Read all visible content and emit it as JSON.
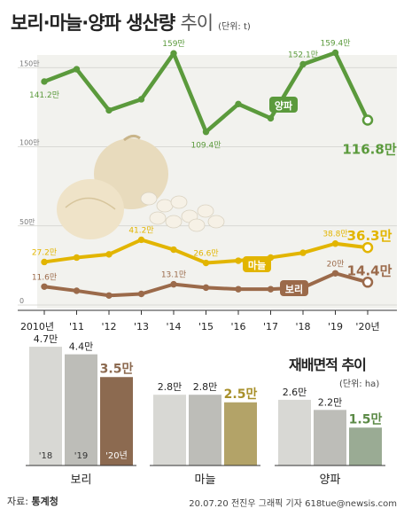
{
  "header": {
    "title_main": "보리·마늘·양파 생산량",
    "title_suffix": "추이",
    "unit": "(단위: t)"
  },
  "colors": {
    "onion": "#5b9a3c",
    "garlic": "#e2b500",
    "barley": "#9b6a4a",
    "bar_gray1": "#d8d8d4",
    "bar_gray2": "#bdbdb8",
    "bar_barley": "#8c6a50",
    "bar_garlic": "#b3a368",
    "bar_onion": "#9aab94"
  },
  "chart_data": [
    {
      "type": "line",
      "x": [
        "2010년",
        "'11",
        "'12",
        "'13",
        "'14",
        "'15",
        "'16",
        "'17",
        "'18",
        "'19",
        "'20년"
      ],
      "ylim": [
        0,
        165
      ],
      "yticks": [
        "0",
        "50만",
        "100만",
        "150만"
      ],
      "series": [
        {
          "name": "양파",
          "values": [
            141.2,
            149,
            123,
            130,
            159,
            109.4,
            127,
            118,
            152.1,
            159.4,
            116.8
          ],
          "labels": [
            "141.2만",
            "",
            "",
            "",
            "159만",
            "109.4만",
            "",
            "",
            "152.1만",
            "159.4만",
            "116.8만"
          ]
        },
        {
          "name": "마늘",
          "values": [
            27.2,
            30,
            32,
            41.2,
            35,
            26.6,
            28,
            30,
            33,
            38.8,
            36.3
          ],
          "labels": [
            "27.2만",
            "",
            "",
            "41.2만",
            "",
            "26.6만",
            "",
            "",
            "",
            "38.8만",
            "36.3만"
          ]
        },
        {
          "name": "보리",
          "values": [
            11.6,
            9,
            6,
            7,
            13.1,
            11,
            10,
            10,
            11,
            20,
            14.4
          ],
          "labels": [
            "11.6만",
            "",
            "",
            "",
            "13.1만",
            "",
            "",
            "",
            "",
            "20만",
            "14.4만"
          ]
        }
      ]
    },
    {
      "type": "bar",
      "title": "재배면적 추이",
      "unit": "(단위: ha)",
      "categories": [
        "'18",
        "'19",
        "'20년"
      ],
      "groups": [
        {
          "name": "보리",
          "values": [
            4.7,
            4.4,
            3.5
          ],
          "labels": [
            "4.7만",
            "4.4만",
            "3.5만"
          ]
        },
        {
          "name": "마늘",
          "values": [
            2.8,
            2.8,
            2.5
          ],
          "labels": [
            "2.8만",
            "2.8만",
            "2.5만"
          ]
        },
        {
          "name": "양파",
          "values": [
            2.6,
            2.2,
            1.5
          ],
          "labels": [
            "2.6만",
            "2.2만",
            "1.5만"
          ]
        }
      ]
    }
  ],
  "footer": {
    "source_label": "자료:",
    "source_name": "통계청",
    "credit": "20.07.20 전진우 그래픽 기자 618tue@newsis.com"
  }
}
